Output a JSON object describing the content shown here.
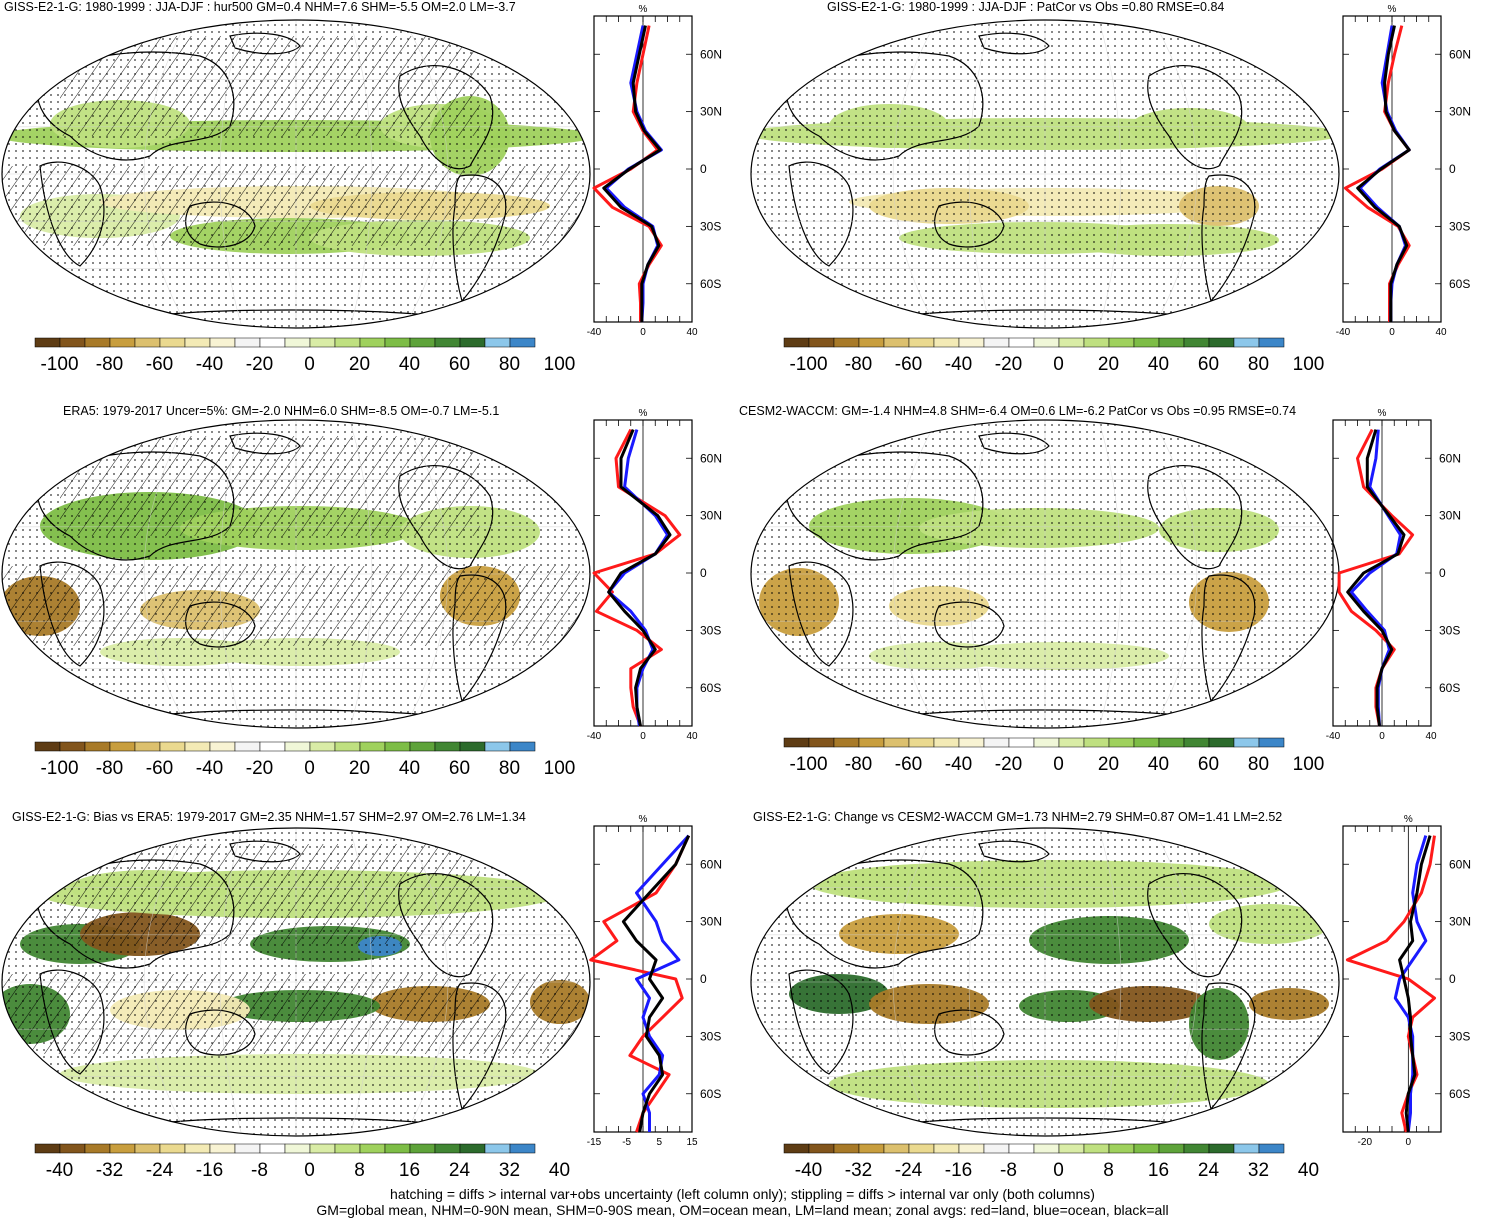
{
  "colors": {
    "scale": [
      "#5e3c14",
      "#82551c",
      "#a87a28",
      "#c89e3e",
      "#dcc06e",
      "#ead98f",
      "#f3eab5",
      "#f8f3d3",
      "#f4f4f4",
      "#ffffff",
      "#f0f7d8",
      "#d9eca6",
      "#bfe080",
      "#9fd15d",
      "#7dbd46",
      "#5ea33a",
      "#418633",
      "#2c6b2c",
      "#8cc7ea",
      "#3c86c8"
    ],
    "land_line": "#ff1a1a",
    "ocean_line": "#1a1aff",
    "all_line": "#000000"
  },
  "panels": [
    {
      "title": "GISS-E2-1-G: 1980-1999 : JJA-DJF : hur500 GM=0.4 NHM=7.6 SHM=-5.5 OM=2.0 LM=-3.7",
      "zonal_unit": "%",
      "xticks": [
        "-40",
        "0",
        "40"
      ],
      "lat_labels": [
        "60N",
        "30N",
        "0",
        "30S",
        "60S"
      ],
      "colorbar_labels": [
        "-100",
        "-80",
        "-60",
        "-40",
        "-20",
        "0",
        "20",
        "40",
        "60",
        "80",
        "100"
      ],
      "hatching": true
    },
    {
      "title": "GISS-E2-1-G: 1980-1999 : JJA-DJF : PatCor vs Obs =0.80 RMSE=0.84",
      "zonal_unit": "%",
      "xticks": [
        "-40",
        "0",
        "40"
      ],
      "lat_labels": [
        "60N",
        "30N",
        "0",
        "30S",
        "60S"
      ],
      "colorbar_labels": [
        "-100",
        "-80",
        "-60",
        "-40",
        "-20",
        "0",
        "20",
        "40",
        "60",
        "80",
        "100"
      ],
      "hatching": false
    },
    {
      "title": "ERA5: 1979-2017 Uncer=5%: GM=-2.0 NHM=6.0 SHM=-8.5 OM=-0.7 LM=-5.1",
      "zonal_unit": "%",
      "xticks": [
        "-40",
        "0",
        "40"
      ],
      "lat_labels": [
        "60N",
        "30N",
        "0",
        "30S",
        "60S"
      ],
      "colorbar_labels": [
        "-100",
        "-80",
        "-60",
        "-40",
        "-20",
        "0",
        "20",
        "40",
        "60",
        "80",
        "100"
      ],
      "hatching": true
    },
    {
      "title": "CESM2-WACCM: GM=-1.4 NHM=4.8 SHM=-6.4 OM=0.6 LM=-6.2 PatCor vs Obs =0.95 RMSE=0.74",
      "zonal_unit": "%",
      "xticks": [
        "-40",
        "0",
        "40"
      ],
      "lat_labels": [
        "60N",
        "30N",
        "0",
        "30S",
        "60S"
      ],
      "colorbar_labels": [
        "-100",
        "-80",
        "-60",
        "-40",
        "-20",
        "0",
        "20",
        "40",
        "60",
        "80",
        "100"
      ],
      "hatching": false
    },
    {
      "title": "GISS-E2-1-G: Bias vs ERA5: 1979-2017 GM=2.35 NHM=1.57 SHM=2.97 OM=2.76 LM=1.34",
      "zonal_unit": "%",
      "xticks": [
        "-15",
        "-5",
        "5",
        "15"
      ],
      "lat_labels": [
        "60N",
        "30N",
        "0",
        "30S",
        "60S"
      ],
      "colorbar_labels": [
        "-40",
        "-32",
        "-24",
        "-16",
        "-8",
        "0",
        "8",
        "16",
        "24",
        "32",
        "40"
      ],
      "hatching": true
    },
    {
      "title": "GISS-E2-1-G: Change vs CESM2-WACCM GM=1.73 NHM=2.79 SHM=0.87 OM=1.41 LM=2.52",
      "zonal_unit": "%",
      "xticks": [
        "-20",
        "0"
      ],
      "lat_labels": [
        "60N",
        "30N",
        "0",
        "30S",
        "60S"
      ],
      "colorbar_labels": [
        "-40",
        "-32",
        "-24",
        "-16",
        "-8",
        "0",
        "8",
        "16",
        "24",
        "32",
        "40"
      ],
      "hatching": false
    }
  ],
  "footer": {
    "line1": "hatching = diffs > internal var+obs uncertainty (left column only); stippling = diffs > internal var only (both columns)",
    "line2": "GM=global mean, NHM=0-90N mean, SHM=0-90S mean, OM=ocean mean, LM=land mean; zonal avgs: red=land, blue=ocean, black=all"
  },
  "chart_data": [
    {
      "type": "line",
      "title": "GISS-E2-1-G: 1980-1999 : JJA-DJF : hur500 GM=0.4 NHM=7.6 SHM=-5.5 OM=2.0 LM=-3.7",
      "xlabel": "%",
      "xlim": [
        -40,
        40
      ],
      "ylim": [
        -80,
        80
      ],
      "yticks": [
        60,
        30,
        0,
        -30,
        -60
      ],
      "series": [
        {
          "name": "land",
          "lat": [
            75,
            60,
            45,
            30,
            20,
            10,
            0,
            -10,
            -20,
            -30,
            -40,
            -50,
            -60,
            -70,
            -80
          ],
          "values": [
            5,
            0,
            -5,
            -8,
            0,
            12,
            -10,
            -40,
            -25,
            5,
            15,
            5,
            -3,
            -2,
            -2
          ]
        },
        {
          "name": "ocean",
          "lat": [
            75,
            60,
            45,
            30,
            20,
            10,
            0,
            -10,
            -20,
            -30,
            -40,
            -50,
            -60,
            -70,
            -80
          ],
          "values": [
            0,
            -5,
            -10,
            -5,
            2,
            15,
            -12,
            -30,
            -15,
            8,
            12,
            4,
            0,
            0,
            -1
          ]
        },
        {
          "name": "all",
          "lat": [
            75,
            60,
            45,
            30,
            20,
            10,
            0,
            -10,
            -20,
            -30,
            -40,
            -50,
            -60,
            -70,
            -80
          ],
          "values": [
            2,
            -3,
            -8,
            -6,
            1,
            14,
            -11,
            -32,
            -18,
            7,
            13,
            4,
            -1,
            -1,
            -1
          ]
        }
      ]
    },
    {
      "type": "line",
      "title": "GISS-E2-1-G: 1980-1999 : JJA-DJF : PatCor vs Obs =0.80 RMSE=0.84",
      "xlabel": "%",
      "xlim": [
        -40,
        40
      ],
      "ylim": [
        -80,
        80
      ],
      "yticks": [
        60,
        30,
        0,
        -30,
        -60
      ],
      "series": [
        {
          "name": "land",
          "lat": [
            75,
            60,
            45,
            30,
            20,
            10,
            0,
            -10,
            -20,
            -30,
            -40,
            -50,
            -60,
            -70,
            -80
          ],
          "values": [
            8,
            2,
            -3,
            -6,
            2,
            14,
            -8,
            -38,
            -20,
            5,
            14,
            5,
            -2,
            -2,
            -2
          ]
        },
        {
          "name": "ocean",
          "lat": [
            75,
            60,
            45,
            30,
            20,
            10,
            0,
            -10,
            -20,
            -30,
            -40,
            -50,
            -60,
            -70,
            -80
          ],
          "values": [
            0,
            -4,
            -8,
            -4,
            3,
            14,
            -10,
            -26,
            -12,
            6,
            11,
            4,
            0,
            -1,
            -1
          ]
        },
        {
          "name": "all",
          "lat": [
            75,
            60,
            45,
            30,
            20,
            10,
            0,
            -10,
            -20,
            -30,
            -40,
            -50,
            -60,
            -70,
            -80
          ],
          "values": [
            2,
            -3,
            -6,
            -5,
            2,
            14,
            -9,
            -28,
            -14,
            6,
            12,
            4,
            -1,
            -1,
            -1
          ]
        }
      ]
    },
    {
      "type": "line",
      "title": "ERA5: 1979-2017 Uncer=5%: GM=-2.0 NHM=6.0 SHM=-8.5 OM=-0.7 LM=-5.1",
      "xlabel": "%",
      "xlim": [
        -40,
        40
      ],
      "ylim": [
        -80,
        80
      ],
      "yticks": [
        60,
        30,
        0,
        -30,
        -60
      ],
      "series": [
        {
          "name": "land",
          "lat": [
            75,
            60,
            45,
            30,
            20,
            10,
            0,
            -10,
            -20,
            -30,
            -40,
            -50,
            -60,
            -70,
            -80
          ],
          "values": [
            -10,
            -22,
            -20,
            18,
            30,
            10,
            -40,
            -25,
            -38,
            -5,
            15,
            -10,
            -10,
            -8,
            -2
          ]
        },
        {
          "name": "ocean",
          "lat": [
            75,
            60,
            45,
            30,
            20,
            10,
            0,
            -10,
            -20,
            -30,
            -40,
            -50,
            -60,
            -70,
            -80
          ],
          "values": [
            -5,
            -12,
            -15,
            10,
            20,
            10,
            -15,
            -28,
            -10,
            2,
            8,
            0,
            -5,
            -5,
            -3
          ]
        },
        {
          "name": "all",
          "lat": [
            75,
            60,
            45,
            30,
            20,
            10,
            0,
            -10,
            -20,
            -30,
            -40,
            -50,
            -60,
            -70,
            -80
          ],
          "values": [
            -8,
            -18,
            -18,
            12,
            22,
            10,
            -18,
            -28,
            -15,
            0,
            10,
            -2,
            -6,
            -5,
            -2
          ]
        }
      ]
    },
    {
      "type": "line",
      "title": "CESM2-WACCM: GM=-1.4 NHM=4.8 SHM=-6.4 OM=0.6 LM=-6.2 PatCor vs Obs =0.95 RMSE=0.74",
      "xlabel": "%",
      "xlim": [
        -40,
        40
      ],
      "ylim": [
        -80,
        80
      ],
      "yticks": [
        60,
        30,
        0,
        -30,
        -60
      ],
      "series": [
        {
          "name": "land",
          "lat": [
            75,
            60,
            45,
            30,
            20,
            10,
            0,
            -10,
            -20,
            -30,
            -40,
            -50,
            -60,
            -70,
            -80
          ],
          "values": [
            -8,
            -20,
            -15,
            8,
            25,
            14,
            -35,
            -35,
            -25,
            -5,
            10,
            0,
            -5,
            -5,
            -2
          ]
        },
        {
          "name": "ocean",
          "lat": [
            75,
            60,
            45,
            30,
            20,
            10,
            0,
            -10,
            -20,
            -30,
            -40,
            -50,
            -60,
            -70,
            -80
          ],
          "values": [
            -3,
            -5,
            -10,
            5,
            15,
            12,
            -10,
            -25,
            -12,
            2,
            6,
            0,
            -3,
            -3,
            -2
          ]
        },
        {
          "name": "all",
          "lat": [
            75,
            60,
            45,
            30,
            20,
            10,
            0,
            -10,
            -20,
            -30,
            -40,
            -50,
            -60,
            -70,
            -80
          ],
          "values": [
            -5,
            -12,
            -12,
            6,
            18,
            13,
            -15,
            -28,
            -15,
            0,
            8,
            0,
            -4,
            -4,
            -2
          ]
        }
      ]
    },
    {
      "type": "line",
      "title": "GISS-E2-1-G: Bias vs ERA5: 1979-2017 GM=2.35 NHM=1.57 SHM=2.97 OM=2.76 LM=1.34",
      "xlabel": "%",
      "xlim": [
        -15,
        15
      ],
      "ylim": [
        -80,
        80
      ],
      "yticks": [
        60,
        30,
        0,
        -30,
        -60
      ],
      "series": [
        {
          "name": "land",
          "lat": [
            75,
            60,
            45,
            30,
            20,
            10,
            0,
            -10,
            -20,
            -30,
            -40,
            -50,
            -60,
            -70,
            -80
          ],
          "values": [
            14,
            10,
            4,
            -12,
            -8,
            -16,
            10,
            12,
            6,
            0,
            -4,
            8,
            4,
            0,
            -2
          ]
        },
        {
          "name": "ocean",
          "lat": [
            75,
            60,
            45,
            30,
            20,
            10,
            0,
            -10,
            -20,
            -30,
            -40,
            -50,
            -60,
            -70,
            -80
          ],
          "values": [
            14,
            6,
            -2,
            4,
            6,
            11,
            -2,
            2,
            0,
            2,
            6,
            5,
            0,
            2,
            2
          ]
        },
        {
          "name": "all",
          "lat": [
            75,
            60,
            45,
            30,
            20,
            10,
            0,
            -10,
            -20,
            -30,
            -40,
            -50,
            -60,
            -70,
            -80
          ],
          "values": [
            14,
            10,
            2,
            -6,
            -2,
            4,
            2,
            6,
            2,
            1,
            5,
            6,
            2,
            0,
            -1
          ]
        }
      ]
    },
    {
      "type": "line",
      "title": "GISS-E2-1-G: Change vs CESM2-WACCM GM=1.73 NHM=2.79 SHM=0.87 OM=1.41 LM=2.52",
      "xlabel": "%",
      "xlim": [
        -30,
        15
      ],
      "ylim": [
        -80,
        80
      ],
      "yticks": [
        60,
        30,
        0,
        -30,
        -60
      ],
      "series": [
        {
          "name": "land",
          "lat": [
            75,
            60,
            45,
            30,
            20,
            10,
            0,
            -10,
            -20,
            -30,
            -40,
            -50,
            -60,
            -70,
            -80
          ],
          "values": [
            12,
            10,
            6,
            -2,
            -10,
            -28,
            0,
            12,
            2,
            0,
            2,
            4,
            0,
            -3,
            -1
          ]
        },
        {
          "name": "ocean",
          "lat": [
            75,
            60,
            45,
            30,
            20,
            10,
            0,
            -10,
            -20,
            -30,
            -40,
            -50,
            -60,
            -70,
            -80
          ],
          "values": [
            8,
            4,
            2,
            4,
            8,
            2,
            -4,
            -6,
            0,
            2,
            2,
            2,
            1,
            1,
            0
          ]
        },
        {
          "name": "all",
          "lat": [
            75,
            60,
            45,
            30,
            20,
            10,
            0,
            -10,
            -20,
            -30,
            -40,
            -50,
            -60,
            -70,
            -80
          ],
          "values": [
            10,
            6,
            4,
            1,
            2,
            -4,
            -2,
            0,
            1,
            1,
            2,
            3,
            0,
            -1,
            0
          ]
        }
      ]
    }
  ]
}
